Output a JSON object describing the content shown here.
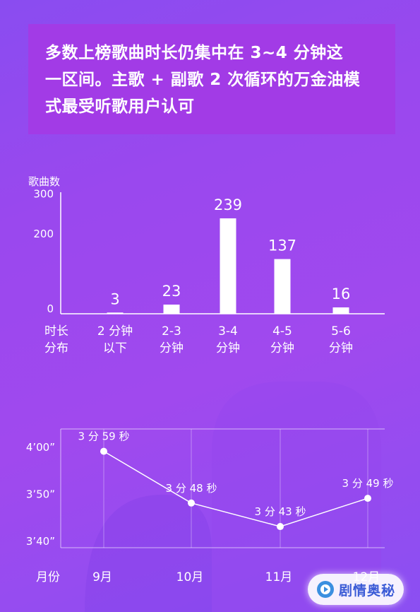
{
  "headline": {
    "line1": "多数上榜歌曲时长仍集中在 3~4 分钟这",
    "line2": "一区间。主歌 + 副歌 2 次循环的万金油模",
    "line3": "式最受听歌用户认可"
  },
  "chart_data": [
    {
      "type": "bar",
      "ylabel": "歌曲数",
      "xlabel": [
        "时长",
        "分布"
      ],
      "yticks": [
        0,
        200,
        300
      ],
      "ylim": [
        0,
        330
      ],
      "categories": [
        [
          "2 分钟",
          "以下"
        ],
        [
          "2-3",
          "分钟"
        ],
        [
          "3-4",
          "分钟"
        ],
        [
          "4-5",
          "分钟"
        ],
        [
          "5-6",
          "分钟"
        ]
      ],
      "values": [
        3,
        23,
        239,
        137,
        16
      ]
    },
    {
      "type": "line",
      "xlabel": "月份",
      "categories": [
        "9月",
        "10月",
        "11月",
        "12月"
      ],
      "values": [
        239,
        228,
        223,
        229
      ],
      "data_labels": [
        "3 分 59 秒",
        "3 分 48 秒",
        "3 分 43 秒",
        "3 分 49 秒"
      ],
      "yticks": [
        220,
        230,
        240
      ],
      "ytick_labels": [
        "3’40”",
        "3’50”",
        "4’00”"
      ],
      "ylim": [
        220,
        240
      ]
    }
  ],
  "watermark": {
    "text": "剧情奥秘",
    "icon": "play-logo-icon"
  }
}
